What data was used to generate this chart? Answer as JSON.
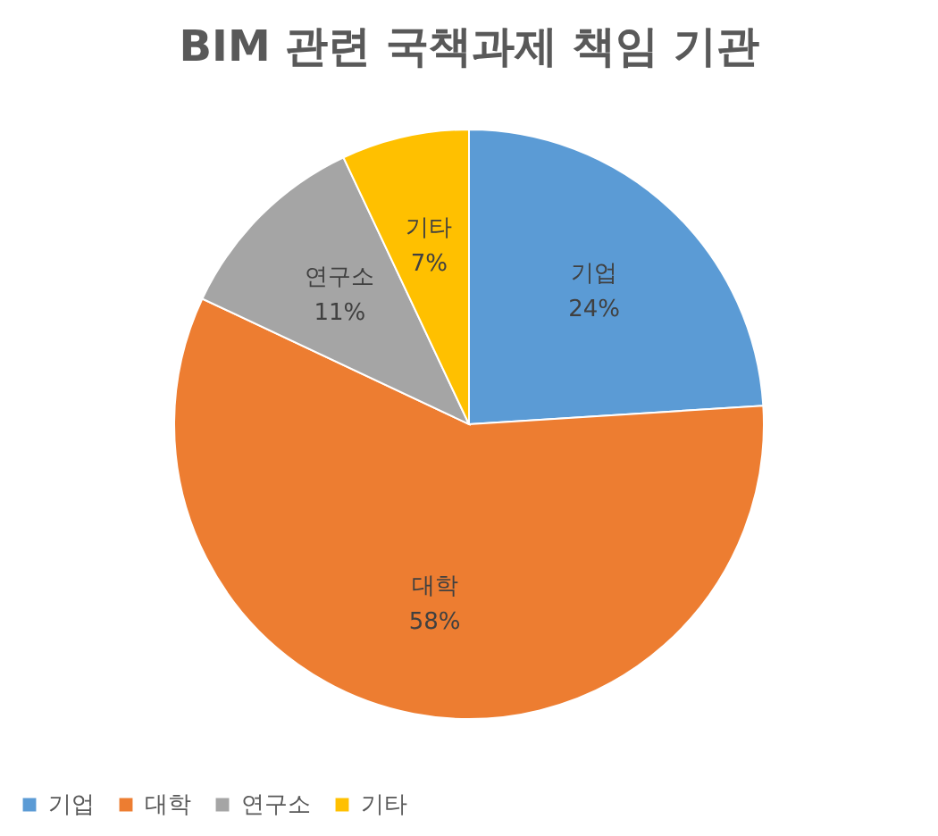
{
  "chart_data": {
    "type": "pie",
    "title": "BIM 관련 국책과제 책임 기관",
    "categories": [
      "기업",
      "대학",
      "연구소",
      "기타"
    ],
    "values": [
      24,
      58,
      11,
      7
    ],
    "colors": [
      "#5b9bd5",
      "#ed7d31",
      "#a5a5a5",
      "#ffc000"
    ],
    "value_labels": [
      "24%",
      "58%",
      "11%",
      "7%"
    ],
    "legend": "bottom"
  }
}
